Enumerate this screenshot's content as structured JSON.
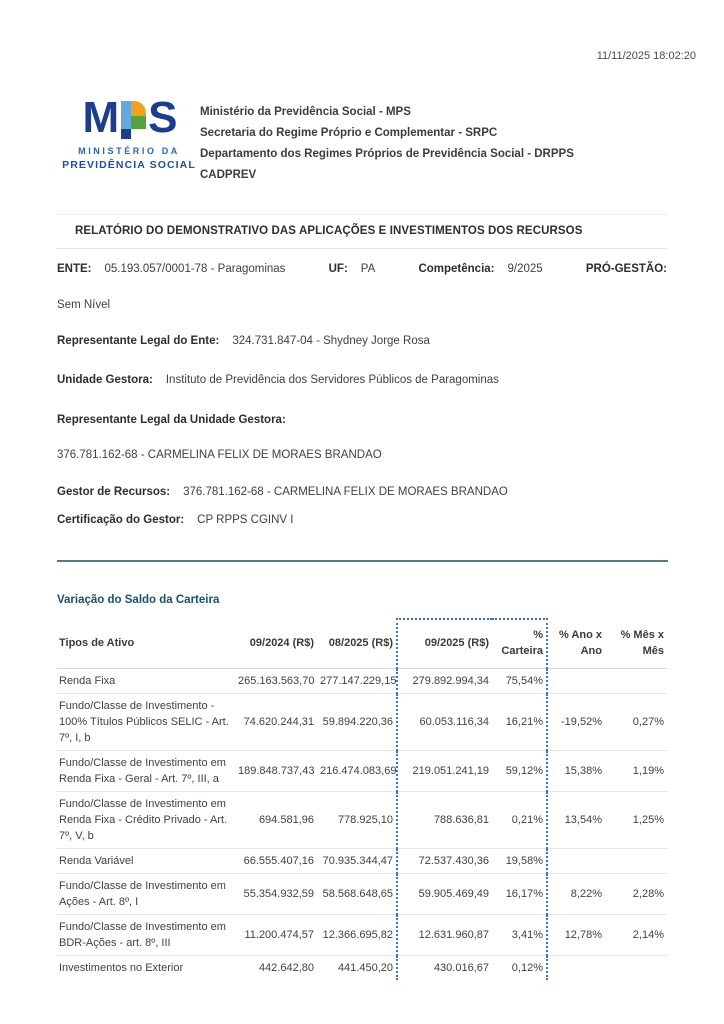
{
  "meta": {
    "timestamp": "11/11/2025 18:02:20"
  },
  "logo": {
    "letter_m": "M",
    "letter_s": "S",
    "caption_line1": "MINISTÉRIO DA",
    "caption_line2": "PREVIDÊNCIA SOCIAL"
  },
  "header": {
    "lines": [
      "Ministério da Previdência Social - MPS",
      "Secretaria do Regime Próprio e Complementar - SRPC",
      "Departamento dos Regimes Próprios de Previdência Social - DRPPS",
      "CADPREV"
    ]
  },
  "title": "RELATÓRIO DO DEMONSTRATIVO DAS APLICAÇÕES E INVESTIMENTOS DOS RECURSOS",
  "info": {
    "ente_label": "ENTE:",
    "ente_value": "05.193.057/0001-78 - Paragominas",
    "uf_label": "UF:",
    "uf_value": "PA",
    "competencia_label": "Competência:",
    "competencia_value": "9/2025",
    "progestao_label": "PRÓ-GESTÃO:",
    "progestao_value": "Sem Nível",
    "rep_ente_label": "Representante Legal do Ente:",
    "rep_ente_value": "324.731.847-04 - Shydney Jorge Rosa",
    "unidade_label": "Unidade Gestora:",
    "unidade_value": "Instituto de Previdência dos Servidores Públicos de Paragominas",
    "rep_ug_label": "Representante Legal da Unidade Gestora:",
    "rep_ug_value": "376.781.162-68 - CARMELINA FELIX DE MORAES BRANDAO",
    "gestor_label": "Gestor de Recursos:",
    "gestor_value": "376.781.162-68 - CARMELINA FELIX DE MORAES BRANDAO",
    "cert_label": "Certificação do Gestor:",
    "cert_value": "CP RPPS CGINV I"
  },
  "section": {
    "title": "Variação do Saldo da Carteira"
  },
  "colors": {
    "highlight_dotted_border": "#4472c4",
    "section_title": "#1a5068",
    "logo_dark_blue": "#1e3d8f",
    "logo_light_blue": "#64a9da",
    "logo_orange": "#f2a01f",
    "logo_green": "#56a33e",
    "divider_dark": "#5c7689"
  },
  "table": {
    "columns": [
      [
        "Tipos de Ativo"
      ],
      [
        "09/2024 (R$)"
      ],
      [
        "08/2025 (R$)"
      ],
      [
        "09/2025 (R$)"
      ],
      [
        "%",
        "Carteira"
      ],
      [
        "% Ano x",
        "Ano"
      ],
      [
        "% Mês x",
        "Mês"
      ]
    ],
    "rows": [
      [
        "Renda Fixa",
        "265.163.563,70",
        "277.147.229,15",
        "279.892.994,34",
        "75,54%",
        "",
        ""
      ],
      [
        "Fundo/Classe de Investimento - 100% Títulos Públicos SELIC - Art. 7º, I, b",
        "74.620.244,31",
        "59.894.220,36",
        "60.053.116,34",
        "16,21%",
        "-19,52%",
        "0,27%"
      ],
      [
        "Fundo/Classe de Investimento em Renda Fixa - Geral - Art. 7º, III, a",
        "189.848.737,43",
        "216.474.083,69",
        "219.051.241,19",
        "59,12%",
        "15,38%",
        "1,19%"
      ],
      [
        "Fundo/Classe de Investimento em Renda Fixa - Crédito Privado - Art. 7º, V, b",
        "694.581,96",
        "778.925,10",
        "788.636,81",
        "0,21%",
        "13,54%",
        "1,25%"
      ],
      [
        "Renda Variável",
        "66.555.407,16",
        "70.935.344,47",
        "72.537.430,36",
        "19,58%",
        "",
        ""
      ],
      [
        "Fundo/Classe de Investimento em Ações - Art. 8º, I",
        "55.354.932,59",
        "58.568.648,65",
        "59.905.469,49",
        "16,17%",
        "8,22%",
        "2,28%"
      ],
      [
        "Fundo/Classe de Investimento em BDR-Ações - art. 8º, III",
        "11.200.474,57",
        "12.366.695,82",
        "12.631.960,87",
        "3,41%",
        "12,78%",
        "2,14%"
      ],
      [
        "Investimentos no Exterior",
        "442.642,80",
        "441.450,20",
        "430.016,67",
        "0,12%",
        "",
        ""
      ]
    ]
  }
}
